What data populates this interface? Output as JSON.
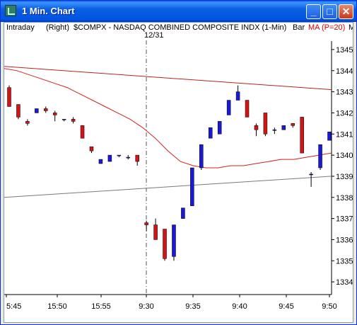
{
  "window": {
    "title": "1  Min. Chart",
    "minimize_glyph": "_",
    "maximize_glyph": "□",
    "close_glyph": "✕"
  },
  "header": {
    "interval": "Intraday",
    "axis_side": "(Right)",
    "symbol": "$COMPX - NASDAQ COMBINED COMPOSITE INDX (1-Min)",
    "chart_style": "Bar",
    "indicator": "MA (P=20)",
    "clipped_label": "M",
    "session_break": "12/31"
  },
  "colors": {
    "up_bar": "#1a1ad6",
    "down_bar": "#d41414",
    "ma_line": "#d42020",
    "slow_line": "#7a7a7a",
    "top_line": "#c02020",
    "indicator_text": "#d40000"
  },
  "chart_data": {
    "type": "candlestick",
    "x_ticks": [
      "5:45",
      "15:50",
      "15:55",
      "9:30",
      "9:35",
      "9:40",
      "9:45",
      "9:50"
    ],
    "y_ticks": [
      1334,
      1335,
      1336,
      1337,
      1338,
      1339,
      1340,
      1341,
      1342,
      1343,
      1344,
      1345
    ],
    "ylim": [
      1333.4,
      1345.4
    ],
    "candles": [
      {
        "o": 1343.2,
        "h": 1343.3,
        "c": 1342.3,
        "l": 1342.3
      },
      {
        "o": 1342.4,
        "h": 1342.4,
        "c": 1341.8,
        "l": 1341.7
      },
      {
        "o": 1341.6,
        "h": 1341.7,
        "c": 1341.5,
        "l": 1341.4
      },
      {
        "o": 1342.0,
        "h": 1342.2,
        "c": 1342.2,
        "l": 1342.0
      },
      {
        "o": 1342.2,
        "h": 1342.3,
        "c": 1342.1,
        "l": 1342.0
      },
      {
        "o": 1342.0,
        "h": 1342.1,
        "c": 1341.9,
        "l": 1341.6
      },
      {
        "o": 1341.7,
        "h": 1341.7,
        "c": 1341.7,
        "l": 1341.6
      },
      {
        "o": 1341.7,
        "h": 1341.8,
        "c": 1341.6,
        "l": 1341.5
      },
      {
        "o": 1341.4,
        "h": 1341.4,
        "c": 1340.8,
        "l": 1340.8
      },
      {
        "o": 1340.4,
        "h": 1340.4,
        "c": 1340.2,
        "l": 1340.1
      },
      {
        "o": 1339.6,
        "h": 1339.8,
        "c": 1339.8,
        "l": 1339.6
      },
      {
        "o": 1339.7,
        "h": 1340.0,
        "c": 1340.0,
        "l": 1339.7
      },
      {
        "o": 1340.0,
        "h": 1340.0,
        "c": 1340.0,
        "l": 1339.9
      },
      {
        "o": 1339.9,
        "h": 1340.0,
        "c": 1339.9,
        "l": 1339.8
      },
      {
        "o": 1340.0,
        "h": 1340.0,
        "c": 1339.7,
        "l": 1339.5
      },
      {
        "o": 1336.8,
        "h": 1336.9,
        "c": 1336.7,
        "l": 1336.4
      },
      {
        "o": 1336.7,
        "h": 1337.0,
        "c": 1336.0,
        "l": 1336.0
      },
      {
        "o": 1336.5,
        "h": 1336.5,
        "c": 1335.1,
        "l": 1335.0
      },
      {
        "o": 1335.2,
        "h": 1336.7,
        "c": 1336.7,
        "l": 1335.0
      },
      {
        "o": 1337.0,
        "h": 1337.5,
        "c": 1337.5,
        "l": 1337.0
      },
      {
        "o": 1337.6,
        "h": 1339.4,
        "c": 1339.4,
        "l": 1337.6
      },
      {
        "o": 1339.4,
        "h": 1340.5,
        "c": 1340.5,
        "l": 1339.3
      },
      {
        "o": 1340.8,
        "h": 1341.3,
        "c": 1341.3,
        "l": 1340.8
      },
      {
        "o": 1341.0,
        "h": 1341.6,
        "c": 1341.6,
        "l": 1341.0
      },
      {
        "o": 1341.9,
        "h": 1342.6,
        "c": 1342.6,
        "l": 1341.9
      },
      {
        "o": 1342.6,
        "h": 1343.3,
        "c": 1343.0,
        "l": 1342.6
      },
      {
        "o": 1342.6,
        "h": 1342.6,
        "c": 1341.8,
        "l": 1341.8
      },
      {
        "o": 1341.4,
        "h": 1341.5,
        "c": 1341.2,
        "l": 1340.9
      },
      {
        "o": 1342.0,
        "h": 1342.0,
        "c": 1341.0,
        "l": 1340.9
      },
      {
        "o": 1341.2,
        "h": 1341.3,
        "c": 1341.2,
        "l": 1341.0
      },
      {
        "o": 1341.2,
        "h": 1341.4,
        "c": 1341.4,
        "l": 1341.2
      },
      {
        "o": 1341.5,
        "h": 1341.5,
        "c": 1341.4,
        "l": 1341.3
      },
      {
        "o": 1341.8,
        "h": 1341.8,
        "c": 1340.1,
        "l": 1340.1
      },
      {
        "o": 1339.1,
        "h": 1339.2,
        "c": 1339.1,
        "l": 1338.5
      },
      {
        "o": 1339.4,
        "h": 1340.5,
        "c": 1340.5,
        "l": 1339.3
      },
      {
        "o": 1340.7,
        "h": 1341.1,
        "c": 1341.1,
        "l": 1340.7
      }
    ],
    "ma_values": [
      1344.1,
      1344.0,
      1343.8,
      1343.6,
      1343.4,
      1343.2,
      1342.9,
      1342.6,
      1342.3,
      1342.0,
      1341.7,
      1341.3,
      1340.8,
      1340.2,
      1339.7,
      1339.5,
      1339.4,
      1339.4,
      1339.5,
      1339.5,
      1339.6,
      1339.7,
      1339.8,
      1339.8,
      1339.9,
      1340.0,
      1340.1
    ],
    "ma_label": "MA (P=20)",
    "top_line": {
      "start": 1344.2,
      "end": 1343.1
    },
    "slow_line": {
      "start": 1338.0,
      "end": 1339.0
    }
  }
}
